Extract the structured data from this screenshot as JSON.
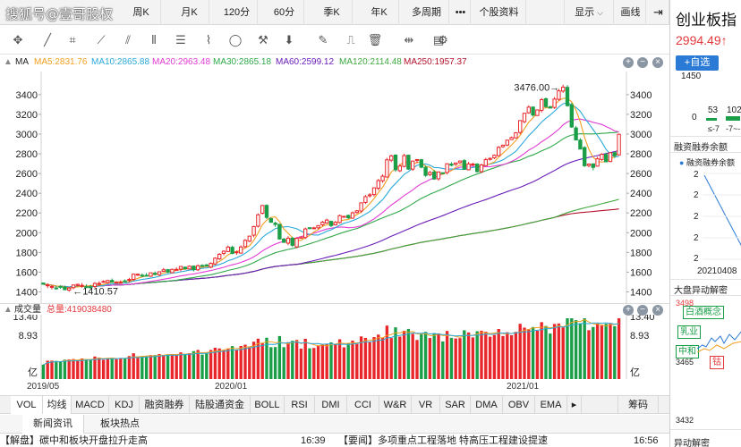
{
  "watermark": "搜狐号@壹哥股权",
  "period_tabs": [
    {
      "label": "周K"
    },
    {
      "label": "月K"
    },
    {
      "label": "120分"
    },
    {
      "label": "60分"
    },
    {
      "label": "季K"
    },
    {
      "label": "年K"
    },
    {
      "label": "多周期"
    },
    {
      "label": "•••"
    },
    {
      "label": "个股资料"
    },
    {
      "label": "显示"
    },
    {
      "label": "画线"
    }
  ],
  "ma_legend": {
    "ma_label": "MA",
    "ma5": "MA5:2831.76",
    "ma10": "MA10:2865.88",
    "ma20": "MA20:2963.48",
    "ma30": "MA30:2865.18",
    "ma60": "MA60:2599.12",
    "ma120": "MA120:2114.48",
    "ma250": "MA250:1957.37",
    "plus": "+",
    "minus": "−",
    "close": "×"
  },
  "colors": {
    "up": "#e8262b",
    "down": "#1a9e48",
    "ma5": "#f0a020",
    "ma10": "#2aa9d8",
    "ma20": "#e23bd4",
    "ma30": "#2fa84a",
    "ma60": "#6a1db8",
    "ma120": "#3da83d",
    "ma250": "#b3122b",
    "accent": "#2b7bd6"
  },
  "volume": {
    "label": "成交量",
    "total": "总量:419038480",
    "plus": "+",
    "minus": "−",
    "close": "×"
  },
  "x_axis": [
    "2019/05",
    "2020/01",
    "2021/01"
  ],
  "indicator_tabs": [
    {
      "label": "VOL"
    },
    {
      "label": "均线"
    },
    {
      "label": "MACD"
    },
    {
      "label": "KDJ"
    },
    {
      "label": "融资融券"
    },
    {
      "label": "陆股通资金"
    },
    {
      "label": "BOLL"
    },
    {
      "label": "RSI"
    },
    {
      "label": "DMI"
    },
    {
      "label": "CCI"
    },
    {
      "label": "W&R"
    },
    {
      "label": "VR"
    },
    {
      "label": "SAR"
    },
    {
      "label": "DMA"
    },
    {
      "label": "OBV"
    },
    {
      "label": "EMA"
    },
    {
      "label": "筹码"
    }
  ],
  "news_tabs": [
    {
      "label": "新闻资讯"
    },
    {
      "label": "板块热点"
    }
  ],
  "news": [
    {
      "text": "【解盘】碳中和板块开盘拉升走高",
      "time": "16:39"
    },
    {
      "text": "【要闻】多项重点工程落地 特高压工程建设提速",
      "time": "16:56"
    }
  ],
  "sidebar": {
    "title": "创业板指",
    "price": "2994.49↑",
    "add": "+自选",
    "n1450": "1450",
    "n0": "0",
    "n53": "53",
    "n102": "102",
    "le7": "≤-7",
    "range": "-7~-",
    "rzrq_title": "融资融券余额",
    "rzrq_legend": "融资融券余额",
    "rzrq_ticks": [
      "2",
      "2",
      "2",
      "2",
      "2"
    ],
    "rzrq_date": "20210408",
    "dapan_title": "大盘异动解密",
    "dp_3498": "3498",
    "dp_3465": "3465",
    "dp_3432": "3432",
    "tag_baijiu": "白酒概念",
    "tag_ru": "乳业",
    "tag_zhonghe": "中和",
    "tag_gu": "钴",
    "dapan_more": "异动解密"
  },
  "chart_data": {
    "type": "candlestick",
    "title": "",
    "ylim": [
      1350,
      3580
    ],
    "y_ticks": [
      1400,
      1600,
      1800,
      2000,
      2200,
      2400,
      2600,
      2800,
      3000,
      3200,
      3400
    ],
    "annotations": [
      {
        "label": "3476.00",
        "value": 3476
      },
      {
        "label": "1410.57",
        "value": 1410.57
      }
    ],
    "candles": [
      [
        1490,
        1478,
        1480,
        1490
      ],
      [
        1470,
        1471,
        1438,
        1485
      ],
      [
        1450,
        1455,
        1425,
        1470
      ],
      [
        1440,
        1436,
        1422,
        1462
      ],
      [
        1455,
        1451,
        1432,
        1467
      ],
      [
        1446,
        1422,
        1417,
        1464
      ],
      [
        1418,
        1438,
        1401,
        1448
      ],
      [
        1443,
        1470,
        1426,
        1474
      ],
      [
        1465,
        1476,
        1455,
        1484
      ],
      [
        1459,
        1466,
        1441,
        1490
      ],
      [
        1452,
        1450,
        1444,
        1478
      ],
      [
        1451,
        1450,
        1436,
        1471
      ],
      [
        1454,
        1486,
        1437,
        1498
      ],
      [
        1479,
        1486,
        1459,
        1507
      ],
      [
        1497,
        1506,
        1494,
        1518
      ],
      [
        1494,
        1515,
        1481,
        1520
      ],
      [
        1516,
        1498,
        1497,
        1536
      ],
      [
        1496,
        1497,
        1486,
        1509
      ],
      [
        1490,
        1496,
        1485,
        1517
      ],
      [
        1512,
        1505,
        1498,
        1526
      ],
      [
        1521,
        1526,
        1496,
        1542
      ],
      [
        1527,
        1580,
        1514,
        1585
      ],
      [
        1570,
        1579,
        1561,
        1584
      ],
      [
        1569,
        1562,
        1550,
        1587
      ],
      [
        1568,
        1562,
        1557,
        1591
      ],
      [
        1558,
        1593,
        1552,
        1596
      ],
      [
        1589,
        1578,
        1567,
        1608
      ],
      [
        1575,
        1604,
        1557,
        1606
      ],
      [
        1608,
        1624,
        1604,
        1642
      ],
      [
        1625,
        1601,
        1590,
        1632
      ],
      [
        1594,
        1628,
        1593,
        1635
      ],
      [
        1626,
        1628,
        1621,
        1648
      ],
      [
        1631,
        1658,
        1610,
        1663
      ],
      [
        1650,
        1633,
        1631,
        1658
      ],
      [
        1632,
        1660,
        1629,
        1669
      ],
      [
        1661,
        1626,
        1608,
        1666
      ],
      [
        1624,
        1665,
        1611,
        1678
      ],
      [
        1668,
        1665,
        1661,
        1680
      ],
      [
        1673,
        1665,
        1657,
        1684
      ],
      [
        1651,
        1690,
        1639,
        1699
      ],
      [
        1683,
        1742,
        1671,
        1750
      ],
      [
        1735,
        1781,
        1724,
        1794
      ],
      [
        1790,
        1812,
        1771,
        1821
      ],
      [
        1809,
        1854,
        1804,
        1869
      ],
      [
        1852,
        1789,
        1782,
        1868
      ],
      [
        1803,
        1806,
        1776,
        1819
      ],
      [
        1793,
        1855,
        1789,
        1871
      ],
      [
        1858,
        1922,
        1844,
        1936
      ],
      [
        1914,
        1965,
        1904,
        1970
      ],
      [
        1975,
        2062,
        1953,
        2070
      ],
      [
        2066,
        2182,
        2052,
        2196
      ],
      [
        2197,
        2276,
        2185,
        2281
      ],
      [
        2277,
        2155,
        2139,
        2288
      ],
      [
        2143,
        2106,
        2101,
        2154
      ],
      [
        2097,
        2084,
        2059,
        2111
      ],
      [
        2085,
        1936,
        1930,
        2088
      ],
      [
        1934,
        1902,
        1902,
        1948
      ],
      [
        1894,
        1944,
        1873,
        1965
      ],
      [
        1944,
        1872,
        1855,
        1959
      ],
      [
        1856,
        1943,
        1843,
        1953
      ],
      [
        1943,
        1955,
        1941,
        1963
      ],
      [
        1951,
        2038,
        1936,
        2052
      ],
      [
        2051,
        2050,
        2033,
        2053
      ],
      [
        2045,
        2049,
        2039,
        2060
      ],
      [
        2050,
        2072,
        2033,
        2076
      ],
      [
        2081,
        2107,
        2064,
        2120
      ],
      [
        2098,
        2128,
        2093,
        2142
      ],
      [
        2115,
        2072,
        2057,
        2123
      ],
      [
        2079,
        2104,
        2073,
        2120
      ],
      [
        2103,
        2173,
        2092,
        2184
      ],
      [
        2166,
        2166,
        2160,
        2170
      ],
      [
        2175,
        2152,
        2139,
        2184
      ],
      [
        2147,
        2202,
        2143,
        2214
      ],
      [
        2205,
        2222,
        2194,
        2230
      ],
      [
        2220,
        2303,
        2199,
        2307
      ],
      [
        2307,
        2365,
        2291,
        2382
      ],
      [
        2374,
        2384,
        2356,
        2402
      ],
      [
        2387,
        2455,
        2367,
        2461
      ],
      [
        2451,
        2528,
        2430,
        2546
      ],
      [
        2527,
        2573,
        2507,
        2592
      ],
      [
        2564,
        2739,
        2559,
        2759
      ],
      [
        2736,
        2779,
        2716,
        2791
      ],
      [
        2787,
        2638,
        2617,
        2795
      ],
      [
        2628,
        2676,
        2614,
        2698
      ],
      [
        2672,
        2782,
        2662,
        2801
      ],
      [
        2786,
        2645,
        2637,
        2792
      ],
      [
        2645,
        2726,
        2627,
        2731
      ],
      [
        2739,
        2742,
        2705,
        2746
      ],
      [
        2740,
        2664,
        2653,
        2749
      ],
      [
        2663,
        2581,
        2566,
        2682
      ],
      [
        2589,
        2611,
        2574,
        2627
      ],
      [
        2616,
        2544,
        2539,
        2637
      ],
      [
        2547,
        2616,
        2528,
        2622
      ],
      [
        2608,
        2603,
        2599,
        2611
      ],
      [
        2610,
        2699,
        2591,
        2704
      ],
      [
        2696,
        2684,
        2672,
        2715
      ],
      [
        2693,
        2707,
        2676,
        2710
      ],
      [
        2710,
        2727,
        2697,
        2732
      ],
      [
        2731,
        2643,
        2636,
        2746
      ],
      [
        2638,
        2697,
        2632,
        2718
      ],
      [
        2687,
        2696,
        2674,
        2709
      ],
      [
        2697,
        2620,
        2610,
        2703
      ],
      [
        2619,
        2687,
        2604,
        2700
      ],
      [
        2680,
        2741,
        2676,
        2759
      ],
      [
        2744,
        2754,
        2731,
        2763
      ],
      [
        2759,
        2785,
        2747,
        2794
      ],
      [
        2780,
        2866,
        2775,
        2878
      ],
      [
        2872,
        2888,
        2860,
        2891
      ],
      [
        2888,
        2938,
        2878,
        2944
      ],
      [
        2944,
        2965,
        2941,
        2975
      ],
      [
        2961,
        3014,
        2955,
        3020
      ],
      [
        3017,
        3137,
        2997,
        3139
      ],
      [
        3126,
        3211,
        3110,
        3212
      ],
      [
        3216,
        3273,
        3206,
        3291
      ],
      [
        3274,
        3193,
        3177,
        3280
      ],
      [
        3188,
        3245,
        3186,
        3249
      ],
      [
        3241,
        3349,
        3219,
        3365
      ],
      [
        3358,
        3278,
        3265,
        3371
      ],
      [
        3276,
        3264,
        3260,
        3289
      ],
      [
        3270,
        3355,
        3255,
        3376
      ],
      [
        3353,
        3438,
        3336,
        3459
      ],
      [
        3436,
        3476,
        3418,
        3500
      ],
      [
        3474,
        3288,
        3279,
        3497
      ],
      [
        3297,
        3072,
        3063,
        3318
      ],
      [
        3062,
        2940,
        2936,
        3082
      ],
      [
        2939,
        2848,
        2846,
        2958
      ],
      [
        2863,
        2679,
        2667,
        2877
      ],
      [
        2681,
        2696,
        2663,
        2703
      ],
      [
        2698,
        2662,
        2633,
        2702
      ],
      [
        2675,
        2749,
        2669,
        2770
      ],
      [
        2743,
        2795,
        2729,
        2807
      ],
      [
        2793,
        2719,
        2719,
        2812
      ],
      [
        2722,
        2811,
        2715,
        2813
      ],
      [
        2812,
        2783,
        2758,
        2823
      ],
      [
        2789,
        2998,
        2782,
        3005
      ]
    ]
  }
}
